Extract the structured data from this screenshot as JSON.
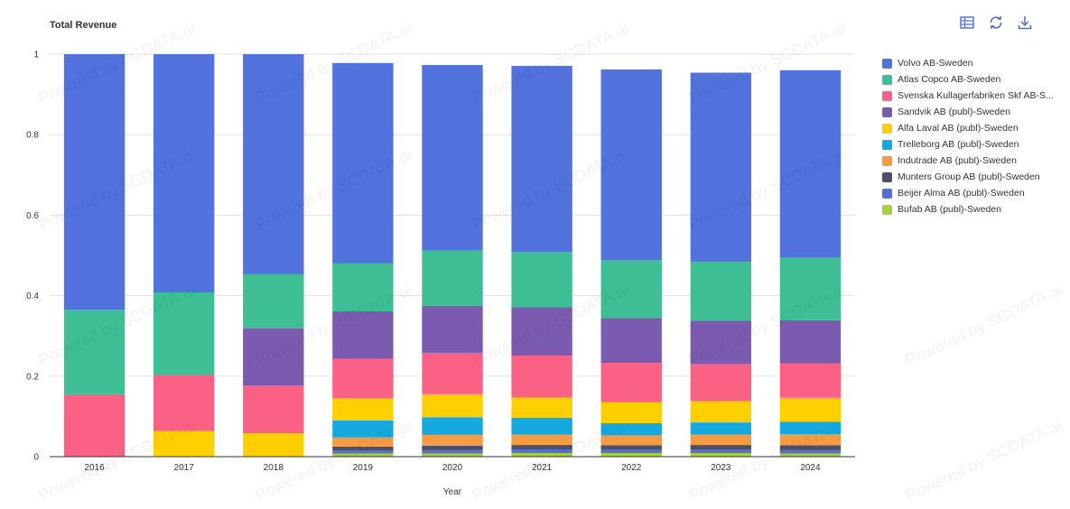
{
  "title": "Total Revenue",
  "toolbar": {
    "icons": [
      "table-icon",
      "refresh-icon",
      "download-icon"
    ],
    "color": "#4a6fd0"
  },
  "watermark": "Powered by SCDATA.ai",
  "chart_data": {
    "type": "bar",
    "stacked": true,
    "title": "Total Revenue",
    "xlabel": "Year",
    "ylabel": "",
    "ylim": [
      0,
      1
    ],
    "yticks": [
      0,
      0.2,
      0.4,
      0.6,
      0.8,
      1
    ],
    "ytick_labels": [
      "0",
      "0.2",
      "0.4",
      "0.6",
      "0.8",
      "1"
    ],
    "grid": true,
    "legend_position": "right",
    "categories": [
      "2016",
      "2017",
      "2018",
      "2019",
      "2020",
      "2021",
      "2022",
      "2023",
      "2024"
    ],
    "series": [
      {
        "name": "Bufab AB (publ)-Sweden",
        "color": "#a5d13b",
        "values": [
          0,
          0,
          0,
          0.008,
          0.008,
          0.009,
          0.009,
          0.009,
          0.008
        ]
      },
      {
        "name": "Beijer Alma AB (publ)-Sweden",
        "color": "#5470d6",
        "values": [
          0,
          0,
          0,
          0.007,
          0.008,
          0.009,
          0.008,
          0.008,
          0.008
        ]
      },
      {
        "name": "Munters Group AB (publ)-Sweden",
        "color": "#4b4e6d",
        "values": [
          0,
          0,
          0,
          0.01,
          0.011,
          0.011,
          0.011,
          0.012,
          0.012
        ]
      },
      {
        "name": "Indutrade AB (publ)-Sweden",
        "color": "#f39c45",
        "values": [
          0,
          0,
          0,
          0.023,
          0.027,
          0.026,
          0.025,
          0.026,
          0.028
        ]
      },
      {
        "name": "Trelleborg AB (publ)-Sweden",
        "color": "#16a9e0",
        "values": [
          0,
          0,
          0,
          0.042,
          0.044,
          0.042,
          0.03,
          0.03,
          0.031
        ]
      },
      {
        "name": "Alfa Laval AB (publ)-Sweden",
        "color": "#ffd000",
        "values": [
          0,
          0.064,
          0.058,
          0.055,
          0.057,
          0.05,
          0.052,
          0.053,
          0.059
        ]
      },
      {
        "name": "Svenska Kullagerfabriken Skf AB-Sweden",
        "color": "#fb6085",
        "values": [
          0.155,
          0.139,
          0.119,
          0.098,
          0.103,
          0.104,
          0.098,
          0.092,
          0.086
        ]
      },
      {
        "name": "Sandvik AB (publ)-Sweden",
        "color": "#7b5bb0",
        "values": [
          0,
          0,
          0.142,
          0.118,
          0.117,
          0.12,
          0.111,
          0.108,
          0.107
        ]
      },
      {
        "name": "Atlas Copco AB-Sweden",
        "color": "#3dbe95",
        "values": [
          0.21,
          0.205,
          0.134,
          0.119,
          0.137,
          0.138,
          0.144,
          0.146,
          0.155
        ]
      },
      {
        "name": "Volvo AB-Sweden",
        "color": "#5272de",
        "values": [
          0.635,
          0.592,
          0.547,
          0.498,
          0.461,
          0.462,
          0.474,
          0.47,
          0.466
        ]
      }
    ]
  },
  "legend": [
    {
      "label": "Volvo AB-Sweden",
      "display": "Volvo AB-Sweden",
      "color": "#5272de"
    },
    {
      "label": "Atlas Copco AB-Sweden",
      "display": "Atlas Copco AB-Sweden",
      "color": "#3dbe95"
    },
    {
      "label": "Svenska Kullagerfabriken Skf AB-Sweden",
      "display": "Svenska Kullagerfabriken Skf AB-S...",
      "color": "#fb6085"
    },
    {
      "label": "Sandvik AB (publ)-Sweden",
      "display": "Sandvik AB (publ)-Sweden",
      "color": "#7b5bb0"
    },
    {
      "label": "Alfa Laval AB (publ)-Sweden",
      "display": "Alfa Laval AB (publ)-Sweden",
      "color": "#ffd000"
    },
    {
      "label": "Trelleborg AB (publ)-Sweden",
      "display": "Trelleborg AB (publ)-Sweden",
      "color": "#16a9e0"
    },
    {
      "label": "Indutrade AB (publ)-Sweden",
      "display": "Indutrade AB (publ)-Sweden",
      "color": "#f39c45"
    },
    {
      "label": "Munters Group AB (publ)-Sweden",
      "display": "Munters Group AB (publ)-Sweden",
      "color": "#4b4e6d"
    },
    {
      "label": "Beijer Alma AB (publ)-Sweden",
      "display": "Beijer Alma AB (publ)-Sweden",
      "color": "#5470d6"
    },
    {
      "label": "Bufab AB (publ)-Sweden",
      "display": "Bufab AB (publ)-Sweden",
      "color": "#a5d13b"
    }
  ]
}
